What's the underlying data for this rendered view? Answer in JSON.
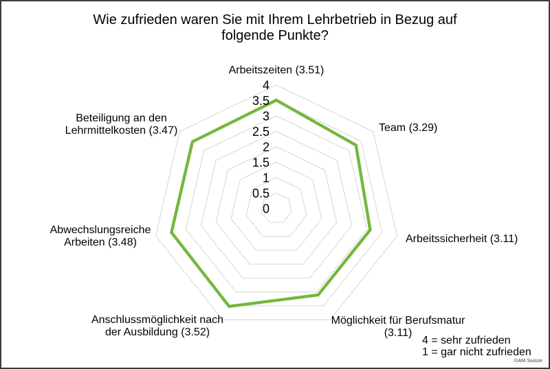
{
  "title": "Wie zufrieden waren Sie mit Ihrem Lehrbetrieb in Bezug auf folgende Punkte?",
  "copyright": "©AM Suisse",
  "chart_data": {
    "type": "radar",
    "title": "Wie zufrieden waren Sie mit Ihrem Lehrbetrieb in Bezug auf folgende Punkte?",
    "categories": [
      "Arbeitszeiten",
      "Team",
      "Arbeitssicherheit",
      "Möglichkeit für Berufsmatur",
      "Anschlussmöglichkeit nach der Ausbildung",
      "Abwechslungsreiche Arbeiten",
      "Beteiligung an den Lehrmittelkosten"
    ],
    "values": [
      3.51,
      3.29,
      3.11,
      3.11,
      3.52,
      3.48,
      3.47
    ],
    "axes": [
      {
        "label": "Arbeitszeiten (3.51)",
        "value": 3.51
      },
      {
        "label": "Team (3.29)",
        "value": 3.29
      },
      {
        "label": "Arbeitssicherheit (3.11)",
        "value": 3.11
      },
      {
        "label": "Möglichkeit für Berufsmatur (3.11)",
        "value": 3.11
      },
      {
        "label": "Anschlussmöglichkeit nach der Ausbildung (3.52)",
        "value": 3.52
      },
      {
        "label": "Abwechslungsreiche Arbeiten (3.48)",
        "value": 3.48
      },
      {
        "label": "Beteiligung an den Lehrmittelkosten (3.47)",
        "value": 3.47
      }
    ],
    "ticks": [
      {
        "label": "0",
        "value": 0
      },
      {
        "label": "0.5",
        "value": 0.5
      },
      {
        "label": "1",
        "value": 1
      },
      {
        "label": "1.5",
        "value": 1.5
      },
      {
        "label": "2",
        "value": 2
      },
      {
        "label": "2.5",
        "value": 2.5
      },
      {
        "label": "3",
        "value": 3
      },
      {
        "label": "3.5",
        "value": 3.5
      },
      {
        "label": "4",
        "value": 4
      }
    ],
    "range": [
      0,
      4
    ],
    "grid": true,
    "series_color": "#75b73e",
    "grid_color": "#d5d5d5",
    "legend_notes": [
      "4 = sehr zufrieden",
      "1 = gar nicht zufrieden"
    ]
  }
}
